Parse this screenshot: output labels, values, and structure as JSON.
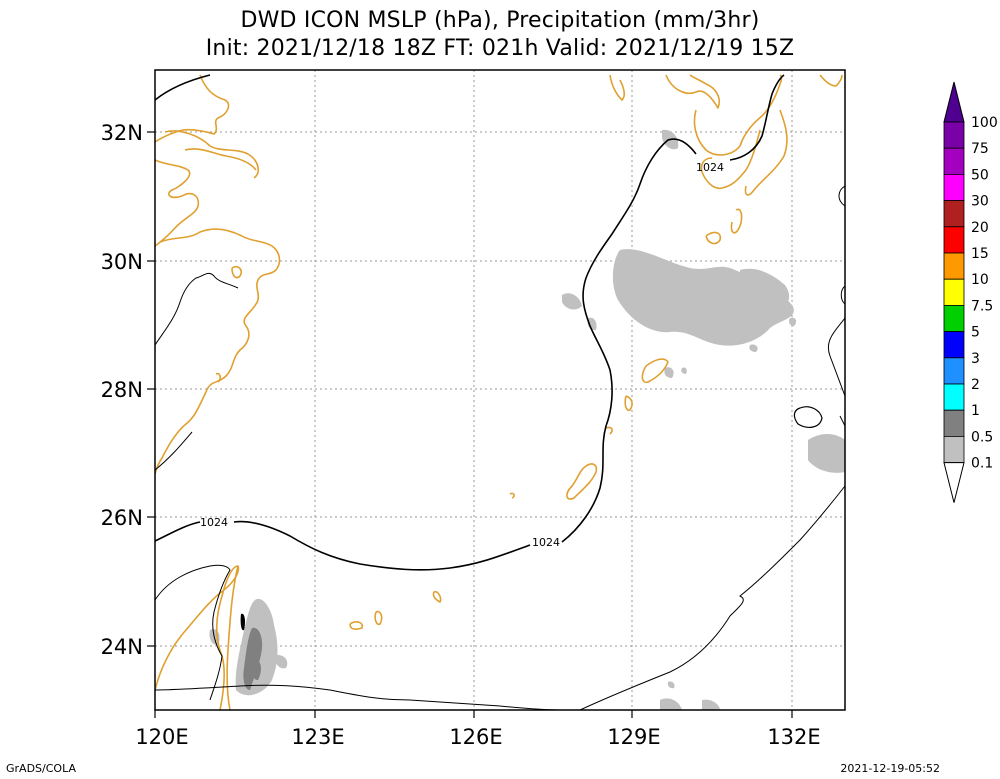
{
  "title_line1": "DWD ICON MSLP (hPa), Precipitation (mm/3hr)",
  "title_line2": "Init: 2021/12/18 18Z  FT: 021h  Valid: 2021/12/19 15Z",
  "lat_labels": [
    "32N",
    "30N",
    "28N",
    "26N",
    "24N"
  ],
  "lon_labels": [
    "120E",
    "123E",
    "126E",
    "129E",
    "132E"
  ],
  "contour_labels": [
    "1024",
    "1024",
    "1024"
  ],
  "colorbar": {
    "labels": [
      "100",
      "75",
      "50",
      "30",
      "20",
      "15",
      "10",
      "7.5",
      "5",
      "3",
      "2",
      "1",
      "0.5",
      "0.1"
    ],
    "colors": [
      "#7a00a8",
      "#a400c0",
      "#ff00ff",
      "#b02020",
      "#ff0000",
      "#ff9900",
      "#ffff00",
      "#00d000",
      "#0000ff",
      "#1e90ff",
      "#00ffff",
      "#808080",
      "#c0c0c0"
    ],
    "top_color": "#500090"
  },
  "footer_left": "GrADS/COLA",
  "footer_right": "2021-12-19-05:52"
}
